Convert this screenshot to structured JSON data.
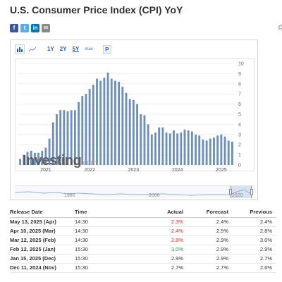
{
  "page": {
    "title": "U.S. Consumer Price Index (CPI) YoY"
  },
  "share": {
    "buttons": [
      {
        "name": "facebook",
        "glyph": "f",
        "color": "#3b5998"
      },
      {
        "name": "twitter",
        "glyph": "t",
        "color": "#55acee"
      },
      {
        "name": "linkedin",
        "glyph": "in",
        "color": "#0077b5"
      },
      {
        "name": "email",
        "glyph": "✉",
        "color": "#8a8a8a"
      }
    ],
    "print_icon": "printer-icon"
  },
  "toolbar": {
    "chart_type_icon": "bar-chart-icon",
    "line_icon": "line-chart-icon",
    "ranges": [
      "1Y",
      "2Y",
      "5Y",
      "max"
    ],
    "active_range": "5Y",
    "p_label": "P"
  },
  "watermark": {
    "brand": "Investing",
    "suffix": ".com"
  },
  "navigator": {
    "labels": [
      "1980",
      "2000",
      "2020"
    ]
  },
  "chart_data": {
    "type": "bar",
    "color": "#6d8fbd",
    "yticks": [
      0,
      1,
      2,
      3,
      4,
      5,
      6,
      7,
      8,
      9,
      10
    ],
    "ylim": [
      0,
      10
    ],
    "xticks": [
      "2021",
      "2022",
      "2023",
      "2024",
      "2025"
    ],
    "start": "2020-06",
    "values": [
      0.6,
      1.0,
      1.3,
      1.4,
      1.2,
      1.2,
      1.4,
      1.7,
      2.6,
      4.2,
      5.0,
      5.4,
      5.4,
      5.3,
      5.4,
      5.4,
      6.2,
      6.8,
      7.0,
      7.5,
      7.9,
      8.5,
      8.3,
      8.6,
      9.1,
      8.5,
      8.3,
      8.2,
      7.7,
      7.1,
      6.5,
      6.4,
      6.0,
      5.0,
      4.9,
      4.0,
      3.0,
      3.2,
      3.7,
      3.7,
      3.2,
      3.1,
      3.4,
      3.1,
      3.2,
      3.5,
      3.4,
      3.3,
      3.0,
      2.9,
      2.5,
      2.4,
      2.6,
      2.7,
      2.9,
      3.0,
      2.8,
      2.4,
      2.3
    ]
  },
  "events": {
    "headers": {
      "date": "Release Date",
      "time": "Time",
      "actual": "Actual",
      "forecast": "Forecast",
      "previous": "Previous"
    },
    "rows": [
      {
        "date": "May 13, 2025 (Apr)",
        "time": "14:30",
        "actual": "2.3%",
        "actual_color": "red",
        "forecast": "2.4%",
        "previous": "2.4%"
      },
      {
        "date": "Apr 10, 2025 (Mar)",
        "time": "14:30",
        "actual": "2.4%",
        "actual_color": "red",
        "forecast": "2.5%",
        "previous": "2.8%"
      },
      {
        "date": "Mar 12, 2025 (Feb)",
        "time": "14:30",
        "actual": "2.8%",
        "actual_color": "red",
        "forecast": "2.9%",
        "previous": "3.0%"
      },
      {
        "date": "Feb 12, 2025 (Jan)",
        "time": "15:30",
        "actual": "3.0%",
        "actual_color": "green",
        "forecast": "2.9%",
        "previous": "2.9%"
      },
      {
        "date": "Jan 15, 2025 (Dec)",
        "time": "15:30",
        "actual": "2.9%",
        "actual_color": "",
        "forecast": "2.9%",
        "previous": "2.7%"
      },
      {
        "date": "Dec 11, 2024 (Nov)",
        "time": "15:30",
        "actual": "2.7%",
        "actual_color": "",
        "forecast": "2.7%",
        "previous": "2.6%"
      }
    ]
  }
}
